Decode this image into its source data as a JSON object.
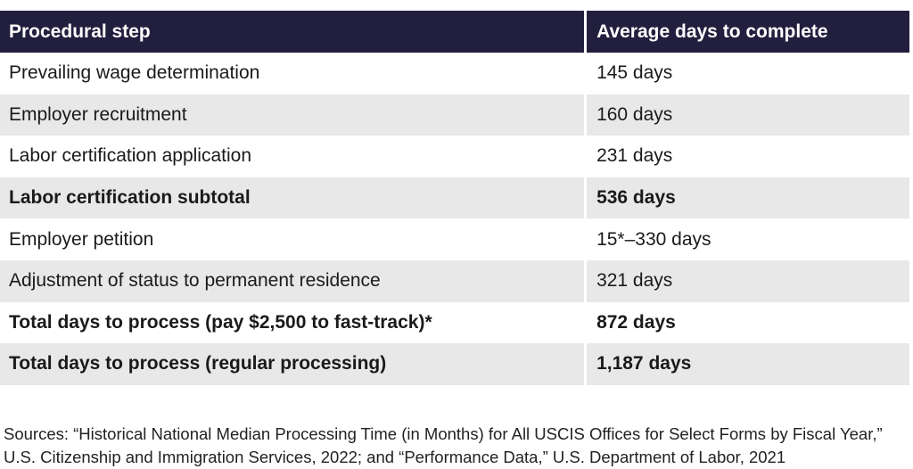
{
  "table": {
    "headers": [
      "Procedural step",
      "Average days to complete"
    ],
    "rows": [
      {
        "step": "Prevailing wage determination",
        "days": "145 days",
        "bold": false
      },
      {
        "step": "Employer recruitment",
        "days": "160 days",
        "bold": false
      },
      {
        "step": "Labor certification application",
        "days": "231 days",
        "bold": false
      },
      {
        "step": "Labor certification subtotal",
        "days": "536 days",
        "bold": true
      },
      {
        "step": "Employer petition",
        "days": "15*–330 days",
        "bold": false
      },
      {
        "step": "Adjustment of status to permanent residence",
        "days": "321 days",
        "bold": false
      },
      {
        "step": "Total days to process (pay $2,500 to fast-track)*",
        "days": "872 days",
        "bold": true
      },
      {
        "step": "Total days to process (regular processing)",
        "days": "1,187 days",
        "bold": true
      }
    ]
  },
  "sources": "Sources: “Historical National Median Processing Time (in Months) for All USCIS Offices for Select Forms by Fiscal Year,” U.S. Citizenship and Immigration Services, 2022; and “Performance Data,” U.S. Department of Labor, 2021"
}
